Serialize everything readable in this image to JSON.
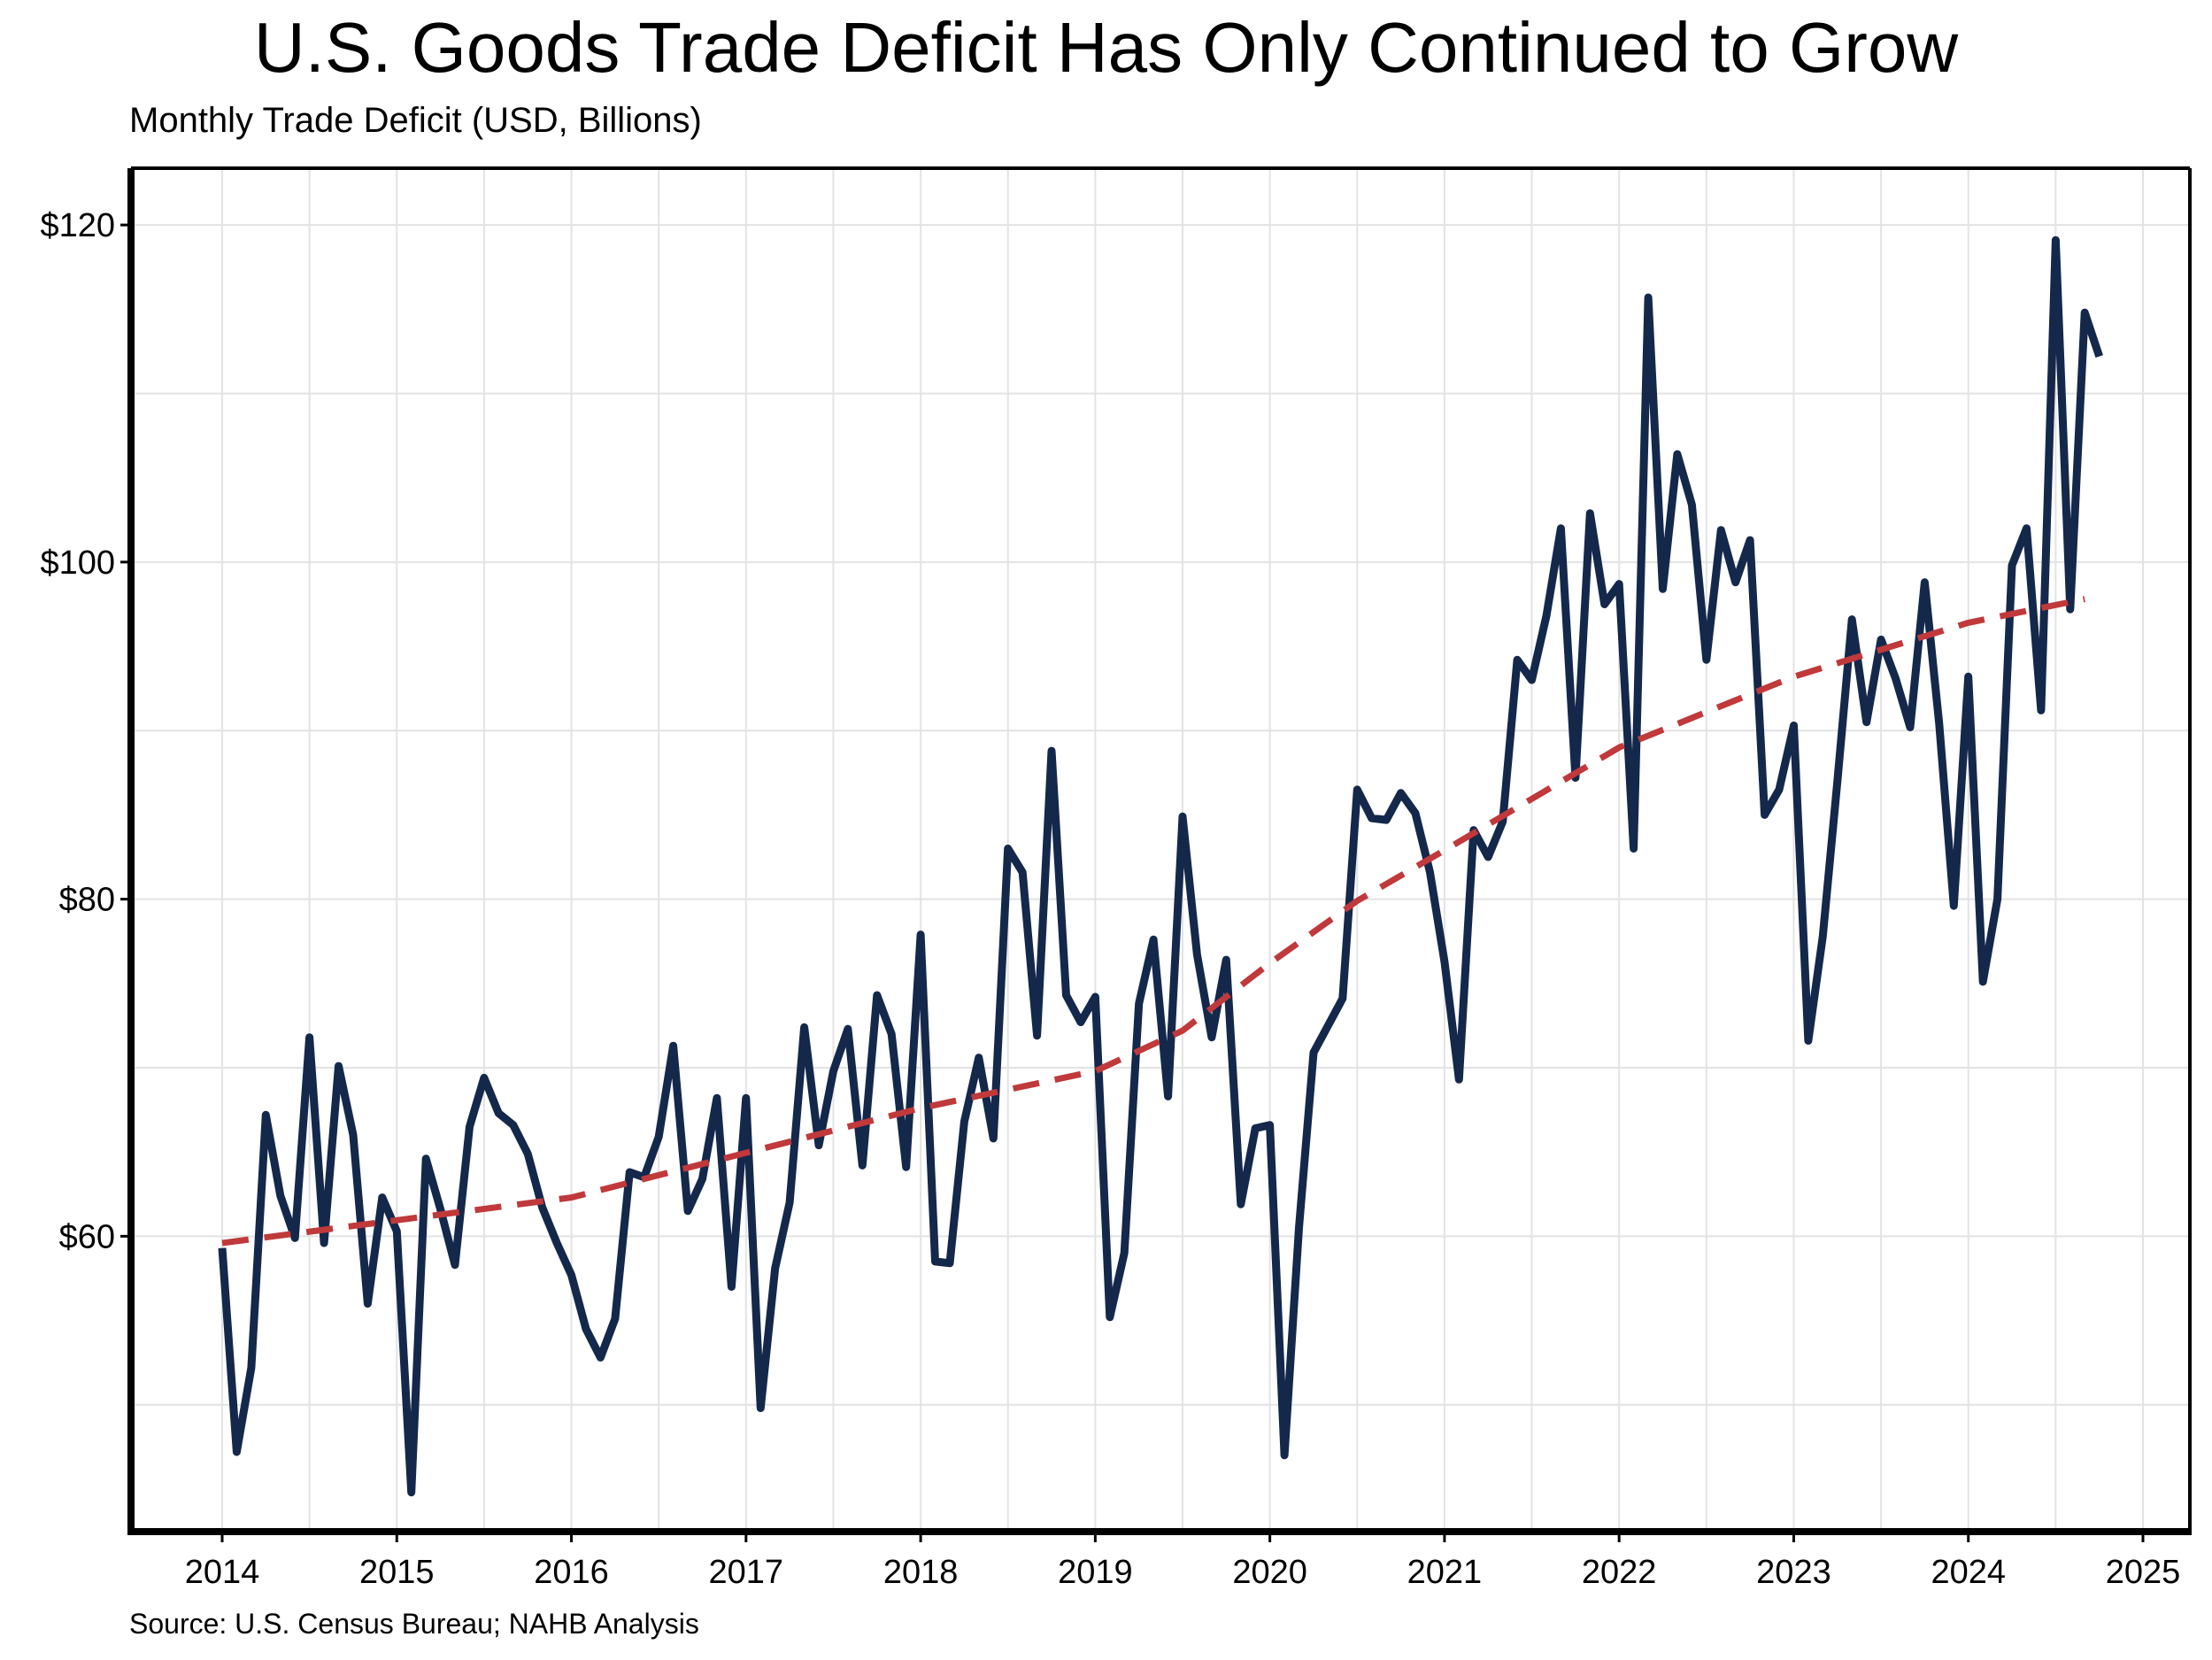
{
  "chart_data": {
    "type": "line",
    "title": "U.S. Goods Trade Deficit Has Only Continued to Grow",
    "subtitle": "Monthly Trade Deficit (USD, Billions)",
    "source": "Source: U.S. Census Bureau; NAHB Analysis",
    "xlabel": "",
    "ylabel": "",
    "xlim": [
      2014,
      2025
    ],
    "ylim": [
      43,
      123
    ],
    "grid": true,
    "x_ticks": [
      "2014",
      "2015",
      "2016",
      "2017",
      "2018",
      "2019",
      "2020",
      "2021",
      "2022",
      "2023",
      "2024",
      "2025"
    ],
    "y_ticks": [
      {
        "value": 60,
        "label": "$60"
      },
      {
        "value": 80,
        "label": "$80"
      },
      {
        "value": 100,
        "label": "$100"
      },
      {
        "value": 120,
        "label": "$120"
      }
    ],
    "series": [
      {
        "color": "#14284b",
        "style": "solid",
        "x_start": "2014-01",
        "values": [
          59.3,
          47.2,
          52.2,
          67.2,
          62.4,
          59.9,
          71.8,
          59.6,
          70.1,
          66.0,
          56.0,
          62.3,
          60.3,
          44.8,
          64.6,
          61.6,
          58.3,
          66.5,
          69.4,
          67.3,
          66.6,
          64.9,
          61.7,
          59.6,
          57.7,
          54.5,
          52.8,
          55.1,
          63.8,
          63.5,
          65.9,
          71.3,
          61.5,
          63.4,
          68.2,
          57.0,
          68.2,
          49.8,
          58.1,
          62.0,
          72.4,
          65.4,
          69.8,
          72.3,
          64.2,
          74.3,
          72.0,
          64.1,
          77.9,
          58.5,
          58.4,
          66.8,
          70.6,
          65.8,
          83.0,
          81.6,
          71.9,
          88.8,
          74.3,
          72.7,
          74.2,
          55.2,
          59.0,
          73.8,
          77.6,
          68.3,
          84.9,
          76.7,
          71.8,
          76.4,
          61.9,
          66.4,
          66.6,
          47.0,
          60.5,
          70.9,
          72.5,
          74.1,
          86.5,
          84.8,
          84.7,
          86.3,
          85.1,
          81.6,
          76.3,
          69.3,
          84.1,
          82.5,
          84.6,
          94.2,
          93.0,
          96.8,
          102.0,
          87.2,
          102.9,
          97.5,
          98.7,
          83.0,
          115.7,
          98.4,
          106.4,
          103.4,
          94.2,
          101.9,
          98.8,
          101.3,
          85.0,
          86.5,
          90.3,
          71.6,
          77.8,
          87.0,
          96.6,
          90.5,
          95.4,
          93.1,
          90.2,
          98.8,
          90.4,
          79.6,
          93.2,
          75.1,
          80.0,
          99.8,
          102.0,
          91.2,
          119.1,
          97.2,
          114.8,
          112.2
        ]
      },
      {
        "color": "#c0393b",
        "style": "dashed",
        "x_start": "2014-01",
        "x_end": "2024-09",
        "points": [
          {
            "x": "2014-01",
            "y": 59.6
          },
          {
            "x": "2016-01",
            "y": 62.3
          },
          {
            "x": "2018-01",
            "y": 67.6
          },
          {
            "x": "2019-01",
            "y": 69.8
          },
          {
            "x": "2019-07",
            "y": 72.2
          },
          {
            "x": "2020-01",
            "y": 76.2
          },
          {
            "x": "2020-07",
            "y": 79.9
          },
          {
            "x": "2021-01",
            "y": 82.9
          },
          {
            "x": "2022-01",
            "y": 89.0
          },
          {
            "x": "2023-01",
            "y": 93.2
          },
          {
            "x": "2024-01",
            "y": 96.4
          },
          {
            "x": "2024-09",
            "y": 97.8
          }
        ]
      }
    ]
  }
}
